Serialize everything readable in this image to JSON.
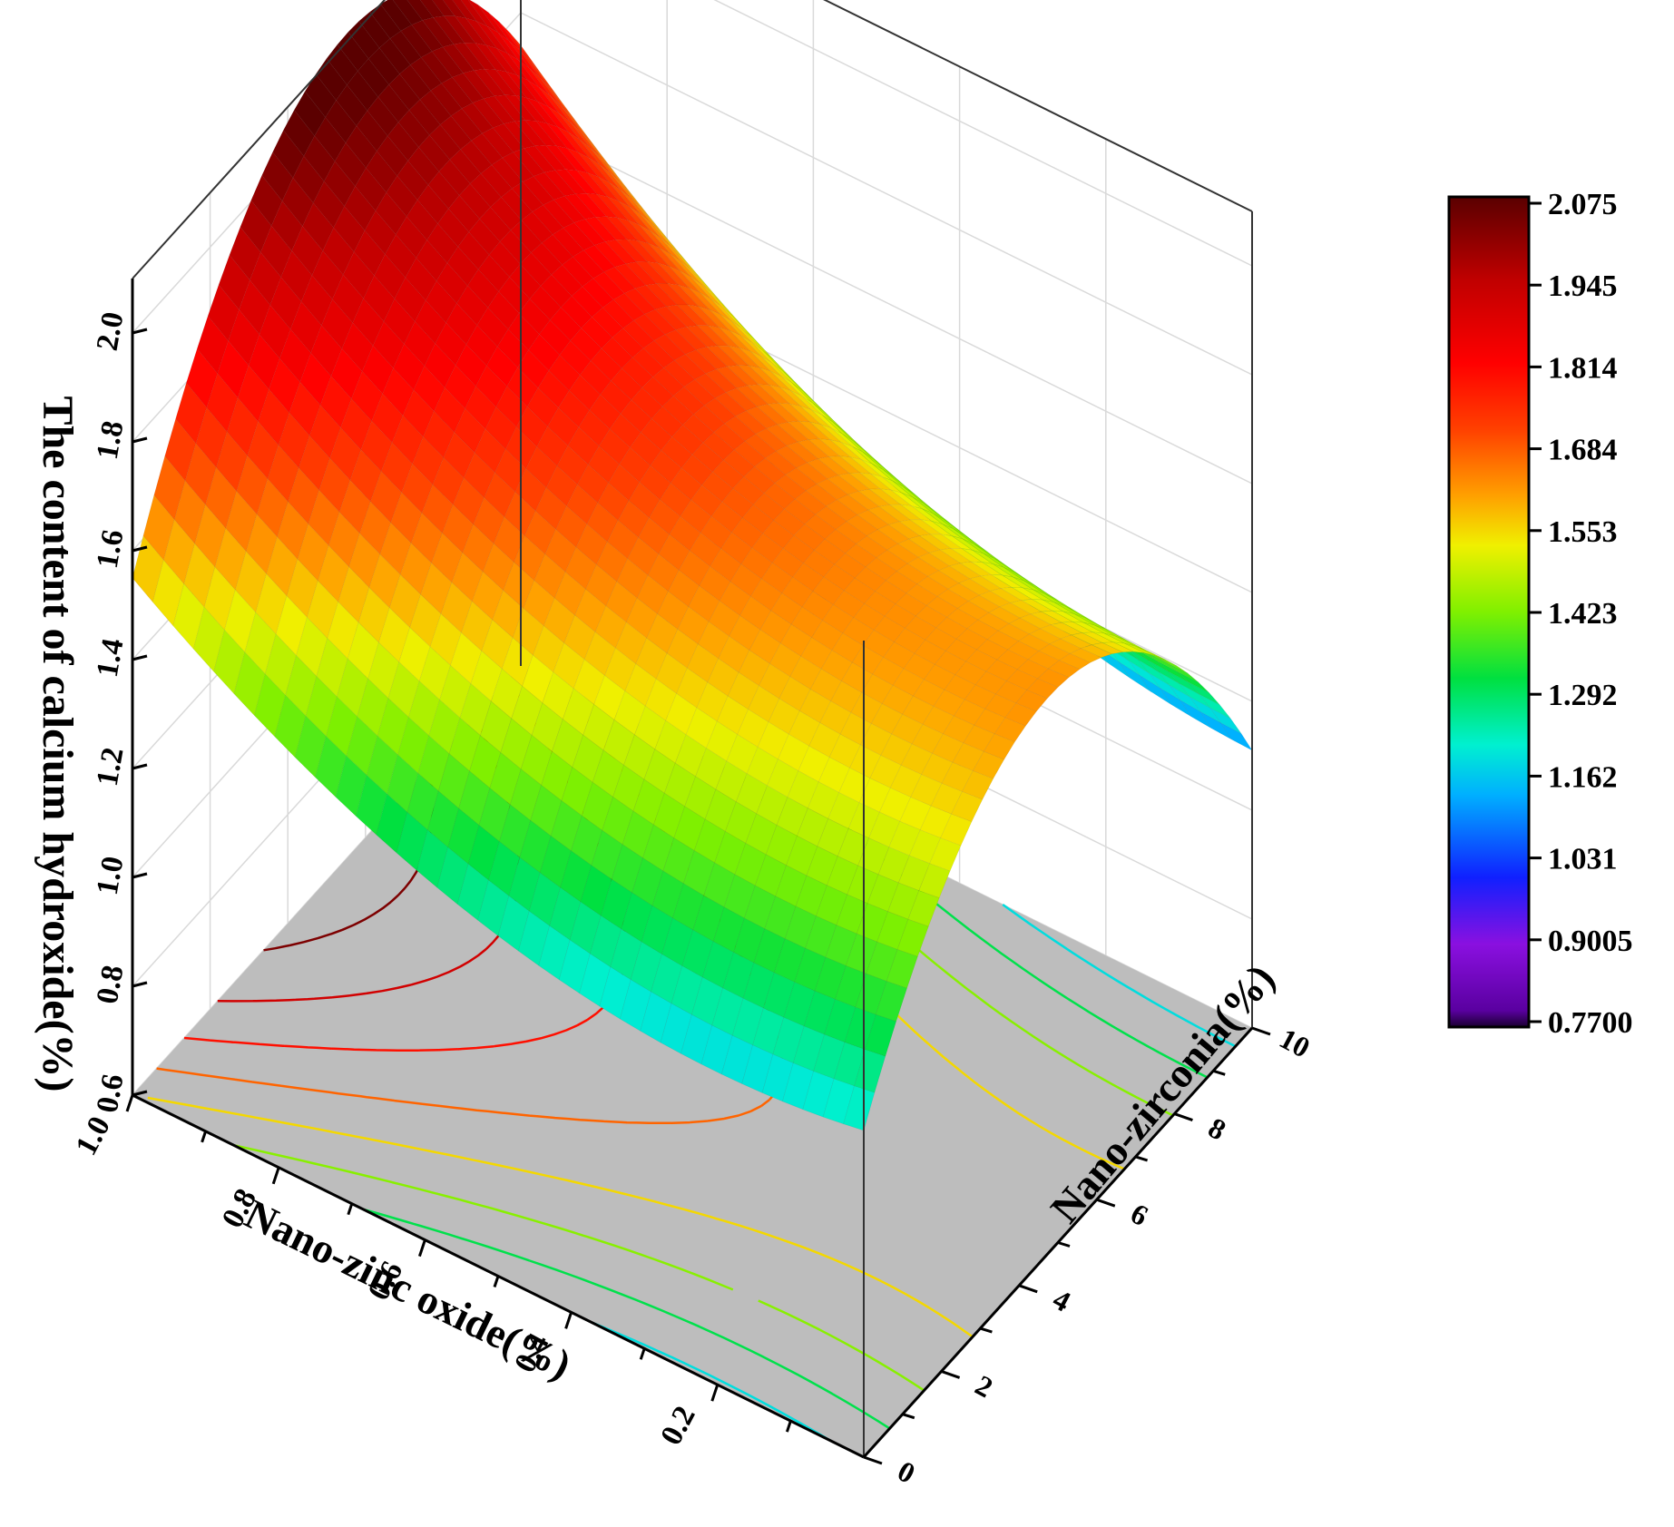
{
  "chart_data": {
    "type": "surface3d",
    "title": "",
    "xlabel": "Nano-zinc oxide(%)",
    "ylabel": "Nano-zirconia(%)",
    "zlabel": "The content of calcium hydroxide(%)",
    "xlim": [
      0,
      1.0
    ],
    "ylim": [
      0,
      10
    ],
    "zlim": [
      0.6,
      2.1
    ],
    "x_ticks": [
      "0.2",
      "0.4",
      "0.6",
      "0.8",
      "1.0"
    ],
    "y_ticks": [
      "0",
      "2",
      "4",
      "6",
      "8",
      "10"
    ],
    "z_ticks": [
      "0.6",
      "0.8",
      "1.0",
      "1.2",
      "1.4",
      "1.6",
      "1.8",
      "2.0"
    ],
    "colorbar": {
      "min": 0.77,
      "max": 2.075,
      "labels": [
        "2.075",
        "1.945",
        "1.814",
        "1.684",
        "1.553",
        "1.423",
        "1.292",
        "1.162",
        "1.031",
        "0.9005",
        "0.7700"
      ]
    },
    "surface_samples": [
      {
        "x": 0.0,
        "y": 0,
        "z": 1.2
      },
      {
        "x": 0.0,
        "y": 5,
        "z": 1.73
      },
      {
        "x": 0.0,
        "y": 10,
        "z": 0.97
      },
      {
        "x": 0.5,
        "y": 0,
        "z": 1.55
      },
      {
        "x": 0.5,
        "y": 5,
        "z": 1.45
      },
      {
        "x": 0.5,
        "y": 10,
        "z": 1.05
      },
      {
        "x": 1.0,
        "y": 0,
        "z": 1.55
      },
      {
        "x": 1.0,
        "y": 5,
        "z": 2.07
      },
      {
        "x": 1.0,
        "y": 10,
        "z": 0.77
      }
    ],
    "grid": true,
    "floor_contours": true,
    "floor_color": "#bdbdbd"
  }
}
